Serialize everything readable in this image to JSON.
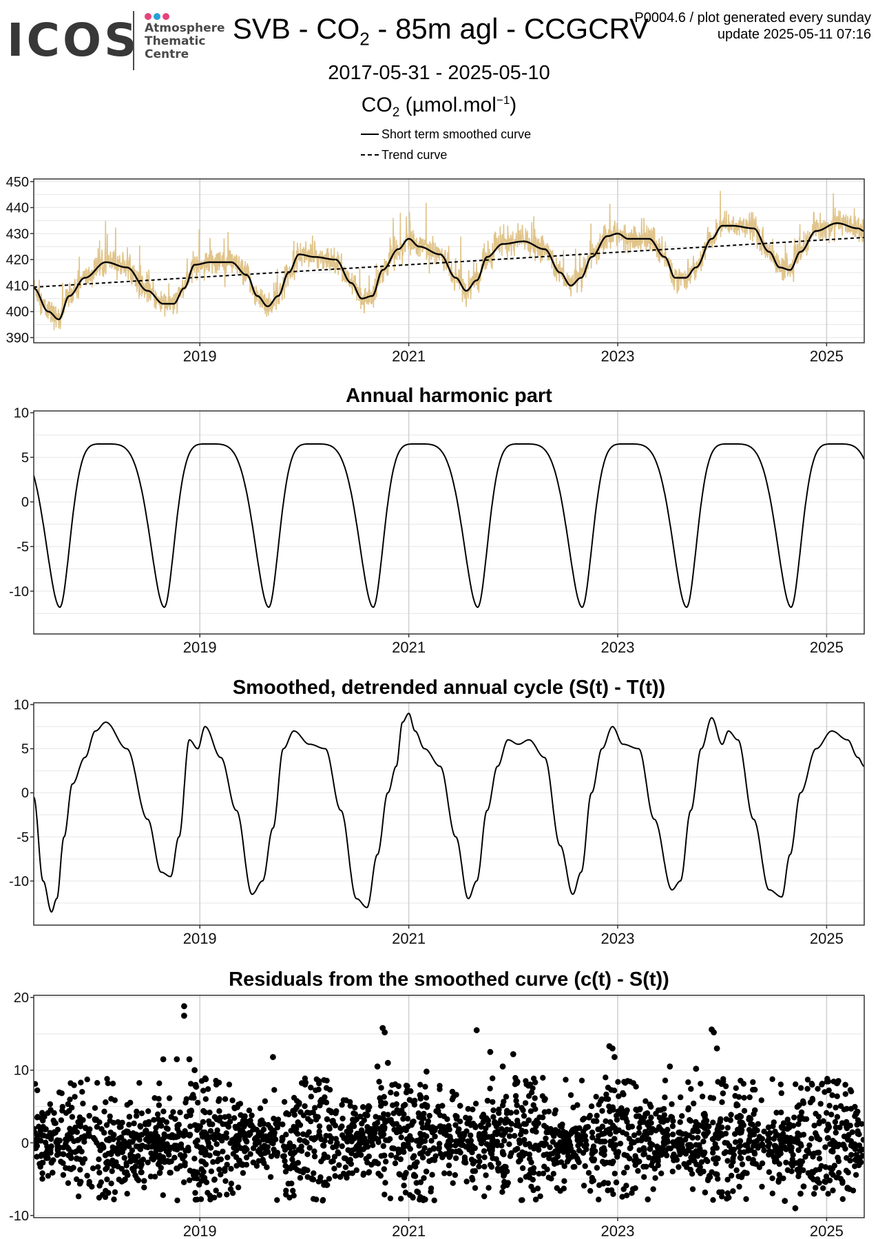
{
  "header": {
    "logo_word": "ICOS",
    "logo_line1": "Atmosphere",
    "logo_line2": "Thematic",
    "logo_line3": "Centre",
    "logo_colors": [
      "#e8427a",
      "#2a9fd8",
      "#e8427a"
    ],
    "title_prefix": "SVB - CO",
    "title_sub": "2",
    "title_suffix": " - 85m agl - CCGCRV",
    "meta_line1": "P0004.6 / plot generated every sunday",
    "meta_line2": "update  2025-05-11 07:16",
    "date_range": "2017-05-31 - 2025-05-10",
    "unit_prefix": "CO",
    "unit_sub": "2",
    "unit_mid": " (µmol.mol",
    "unit_sup": "−1",
    "unit_end": ")"
  },
  "legend": [
    {
      "label": "Short term smoothed curve",
      "style": "solid"
    },
    {
      "label": "Trend curve",
      "style": "dashed"
    }
  ],
  "colors": {
    "observations": "#e0c48a",
    "curve": "#000000",
    "grid": "#e6e6e6",
    "grid_major": "#cfcfcf"
  },
  "chart_data": [
    {
      "type": "line",
      "title": "",
      "xlabel": "",
      "ylabel": "CO2 (µmol.mol-1)",
      "x_range": [
        2017.41,
        2025.36
      ],
      "ylim": [
        388,
        451
      ],
      "x_ticks": [
        2019,
        2021,
        2023,
        2025
      ],
      "x_tick_labels": [
        "2019",
        "2021",
        "2023",
        "2025"
      ],
      "y_ticks": [
        390,
        400,
        410,
        420,
        430,
        440,
        450
      ],
      "series": [
        {
          "name": "Short term smoothed curve",
          "style": "solid",
          "x": [
            2017.41,
            2017.55,
            2017.65,
            2017.75,
            2017.9,
            2018.1,
            2018.3,
            2018.5,
            2018.65,
            2018.75,
            2018.85,
            2018.95,
            2019.1,
            2019.3,
            2019.45,
            2019.55,
            2019.65,
            2019.75,
            2019.85,
            2019.95,
            2020.1,
            2020.3,
            2020.45,
            2020.55,
            2020.65,
            2020.75,
            2020.9,
            2021.0,
            2021.1,
            2021.3,
            2021.45,
            2021.55,
            2021.65,
            2021.75,
            2021.9,
            2022.1,
            2022.3,
            2022.45,
            2022.55,
            2022.65,
            2022.75,
            2022.9,
            2023.0,
            2023.1,
            2023.3,
            2023.45,
            2023.55,
            2023.65,
            2023.75,
            2023.9,
            2024.0,
            2024.1,
            2024.3,
            2024.45,
            2024.55,
            2024.65,
            2024.75,
            2024.9,
            2025.1,
            2025.3,
            2025.36
          ],
          "y": [
            409,
            400,
            397,
            406,
            413,
            419,
            417,
            408,
            403,
            403,
            409,
            418,
            419,
            419,
            414,
            406,
            402,
            406,
            415,
            422,
            421,
            420,
            411,
            405,
            406,
            416,
            424,
            428,
            425,
            422,
            413,
            408,
            412,
            421,
            426,
            427,
            424,
            415,
            410,
            413,
            421,
            429,
            430,
            428,
            428,
            421,
            413,
            413,
            417,
            428,
            433,
            433,
            432,
            423,
            417,
            416,
            423,
            431,
            434,
            432,
            431
          ]
        },
        {
          "name": "Trend curve",
          "style": "dashed",
          "x": [
            2017.41,
            2025.36
          ],
          "y": [
            409.4,
            428.5
          ]
        }
      ],
      "observations_note": "daily mean observations drawn as thin tan line behind the curves"
    },
    {
      "type": "line",
      "title": "Annual harmonic part",
      "xlabel": "",
      "ylabel": "",
      "x_range": [
        2017.41,
        2025.36
      ],
      "ylim": [
        -14.8,
        10.2
      ],
      "x_ticks": [
        2019,
        2021,
        2023,
        2025
      ],
      "x_tick_labels": [
        "2019",
        "2021",
        "2023",
        "2025"
      ],
      "y_ticks": [
        -10,
        -5,
        0,
        5,
        10
      ],
      "series": [
        {
          "name": "",
          "amplitude_max": 6.5,
          "amplitude_min": -11.8,
          "peak_phase": 0.08,
          "trough_phase": 0.66,
          "period_years": 1
        }
      ]
    },
    {
      "type": "line",
      "title": "Smoothed, detrended annual cycle (S(t) - T(t))",
      "xlabel": "",
      "ylabel": "",
      "x_range": [
        2017.41,
        2025.36
      ],
      "ylim": [
        -15,
        10.2
      ],
      "x_ticks": [
        2019,
        2021,
        2023,
        2025
      ],
      "x_tick_labels": [
        "2019",
        "2021",
        "2023",
        "2025"
      ],
      "y_ticks": [
        -10,
        -5,
        0,
        5,
        10
      ],
      "series": [
        {
          "name": "",
          "x": [
            2017.41,
            2017.5,
            2017.58,
            2017.63,
            2017.7,
            2017.78,
            2017.9,
            2018.0,
            2018.1,
            2018.3,
            2018.5,
            2018.63,
            2018.72,
            2018.8,
            2018.9,
            2018.98,
            2019.05,
            2019.2,
            2019.35,
            2019.5,
            2019.6,
            2019.7,
            2019.8,
            2019.9,
            2020.05,
            2020.2,
            2020.35,
            2020.5,
            2020.6,
            2020.7,
            2020.8,
            2020.88,
            2020.94,
            2021.0,
            2021.06,
            2021.15,
            2021.3,
            2021.45,
            2021.57,
            2021.65,
            2021.75,
            2021.85,
            2021.95,
            2022.05,
            2022.15,
            2022.3,
            2022.45,
            2022.57,
            2022.65,
            2022.75,
            2022.85,
            2022.95,
            2023.05,
            2023.2,
            2023.35,
            2023.52,
            2023.6,
            2023.7,
            2023.8,
            2023.9,
            2024.0,
            2024.06,
            2024.15,
            2024.3,
            2024.45,
            2024.57,
            2024.65,
            2024.75,
            2024.9,
            2025.05,
            2025.2,
            2025.3,
            2025.36
          ],
          "y": [
            -0.5,
            -10,
            -13.5,
            -12,
            -5,
            1,
            4,
            7,
            8,
            5,
            -3,
            -9,
            -9.5,
            -5,
            6,
            5,
            7.5,
            4,
            -2,
            -11.5,
            -10,
            -4,
            5,
            7,
            5.5,
            5,
            -2,
            -12,
            -13,
            -7,
            0,
            3,
            8,
            9,
            7,
            5,
            3,
            -5,
            -12,
            -10,
            -2,
            3,
            6,
            5.5,
            6,
            4,
            -6,
            -11.5,
            -9,
            0,
            5,
            7.5,
            5.5,
            5,
            -3,
            -11,
            -10,
            -2,
            5,
            8.5,
            5.5,
            7,
            6,
            -3,
            -11,
            -11.8,
            -7,
            0,
            5,
            7,
            6,
            4,
            3
          ]
        }
      ]
    },
    {
      "type": "scatter",
      "title": "Residuals from the smoothed curve (c(t) - S(t))",
      "xlabel": "",
      "ylabel": "",
      "x_range": [
        2017.41,
        2025.36
      ],
      "ylim": [
        -10.3,
        20.3
      ],
      "x_ticks": [
        2019,
        2021,
        2023,
        2025
      ],
      "x_tick_labels": [
        "2019",
        "2021",
        "2023",
        "2025"
      ],
      "y_ticks": [
        -10,
        0,
        10,
        20
      ],
      "series": [
        {
          "name": "",
          "highlighted_points": {
            "x": [
              2018.85,
              2018.85,
              2018.9,
              2018.95,
              2018.78,
              2018.65,
              2019.7,
              2020.75,
              2020.77,
              2020.7,
              2020.8,
              2021.17,
              2021.65,
              2021.78,
              2021.9,
              2022.0,
              2022.92,
              2022.95,
              2022.97,
              2023.5,
              2023.75,
              2023.9,
              2023.92,
              2023.95,
              2024.6,
              2024.7,
              2024.75,
              2024.78,
              2025.1
            ],
            "y": [
              18.8,
              17.5,
              11.5,
              10,
              11.5,
              11.5,
              11.8,
              15.8,
              15.2,
              10.5,
              11,
              9.8,
              15.5,
              12.5,
              10.5,
              12.2,
              13.3,
              13,
              11.8,
              10.5,
              10.2,
              15.6,
              15.2,
              13,
              -8,
              -9,
              -7,
              -6,
              8.2
            ]
          },
          "bulk_spread": 3.0,
          "points_per_year": 330
        }
      ]
    }
  ]
}
